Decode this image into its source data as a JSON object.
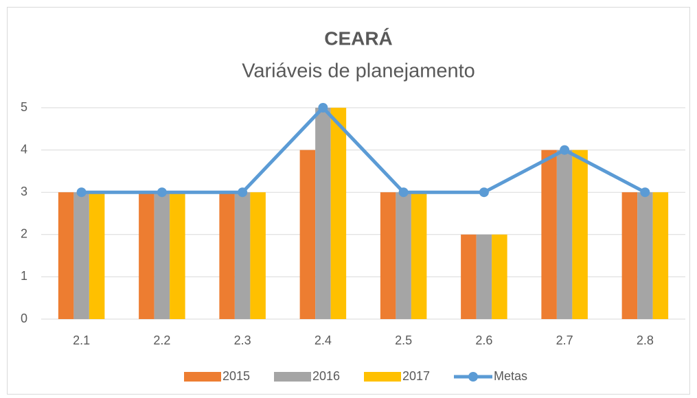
{
  "chart_data": {
    "type": "bar",
    "title": "CEARÁ",
    "subtitle": "Variáveis de planejamento",
    "categories": [
      "2.1",
      "2.2",
      "2.3",
      "2.4",
      "2.5",
      "2.6",
      "2.7",
      "2.8"
    ],
    "series": [
      {
        "name": "2015",
        "color": "#ed7d31",
        "values": [
          3,
          3,
          3,
          4,
          3,
          2,
          4,
          3
        ]
      },
      {
        "name": "2016",
        "color": "#a5a5a5",
        "values": [
          3,
          3,
          3,
          5,
          3,
          2,
          4,
          3
        ]
      },
      {
        "name": "2017",
        "color": "#ffc000",
        "values": [
          3,
          3,
          3,
          5,
          3,
          2,
          4,
          3
        ]
      },
      {
        "name": "Metas",
        "color": "#5b9bd5",
        "type": "line",
        "values": [
          3,
          3,
          3,
          5,
          3,
          3,
          4,
          3
        ]
      }
    ],
    "ylim": [
      0,
      5
    ],
    "yticks": [
      0,
      1,
      2,
      3,
      4,
      5
    ],
    "grid": true,
    "legend": "bottom"
  }
}
